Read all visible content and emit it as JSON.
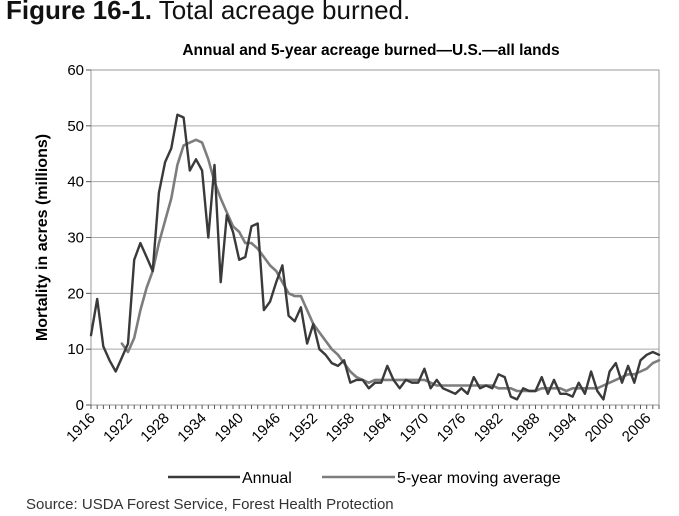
{
  "figure": {
    "number": "Figure 16-1.",
    "caption": "Total acreage burned."
  },
  "chart_data": {
    "type": "line",
    "title": "Annual and 5-year acreage burned—U.S.—all lands",
    "xlabel": "",
    "ylabel": "Mortality in acres (millions)",
    "ylim": [
      0,
      60
    ],
    "yticks": [
      "0",
      "10",
      "20",
      "30",
      "40",
      "50",
      "60"
    ],
    "xlim": [
      1916,
      2008
    ],
    "xticks": [
      "1916",
      "1922",
      "1928",
      "1934",
      "1940",
      "1946",
      "1952",
      "1958",
      "1964",
      "1970",
      "1976",
      "1982",
      "1988",
      "1994",
      "2000",
      "2006"
    ],
    "grid": "horizontal",
    "legend": "bottom",
    "series": [
      {
        "name": "Annual",
        "color": "#3a3a3a",
        "x": [
          1916,
          1917,
          1918,
          1919,
          1920,
          1921,
          1922,
          1923,
          1924,
          1925,
          1926,
          1927,
          1928,
          1929,
          1930,
          1931,
          1932,
          1933,
          1934,
          1935,
          1936,
          1937,
          1938,
          1939,
          1940,
          1941,
          1942,
          1943,
          1944,
          1945,
          1946,
          1947,
          1948,
          1949,
          1950,
          1951,
          1952,
          1953,
          1954,
          1955,
          1956,
          1957,
          1958,
          1959,
          1960,
          1961,
          1962,
          1963,
          1964,
          1965,
          1966,
          1967,
          1968,
          1969,
          1970,
          1971,
          1972,
          1973,
          1974,
          1975,
          1976,
          1977,
          1978,
          1979,
          1980,
          1981,
          1982,
          1983,
          1984,
          1985,
          1986,
          1987,
          1988,
          1989,
          1990,
          1991,
          1992,
          1993,
          1994,
          1995,
          1996,
          1997,
          1998,
          1999,
          2000,
          2001,
          2002,
          2003,
          2004,
          2005,
          2006,
          2007,
          2008
        ],
        "values": [
          12.5,
          19,
          10.5,
          8,
          6,
          8.5,
          11,
          26,
          29,
          26.5,
          24,
          38,
          43.5,
          46,
          52,
          51.5,
          42,
          44,
          42,
          30,
          43,
          22,
          34,
          31,
          26,
          26.5,
          32,
          32.5,
          17,
          18.5,
          22,
          25,
          16,
          15,
          17.5,
          11,
          14.5,
          10,
          9,
          7.5,
          7,
          8,
          4,
          4.5,
          4.5,
          3,
          4,
          4,
          7,
          4.5,
          3,
          4.5,
          4,
          4,
          6.5,
          3,
          4.5,
          3,
          2.5,
          2,
          3,
          2,
          5,
          3,
          3.5,
          3,
          5.5,
          5,
          1.5,
          1,
          3,
          2.5,
          2.5,
          5,
          2,
          4.5,
          2,
          2,
          1.5,
          4,
          2,
          6,
          2.5,
          1,
          6,
          7.5,
          4,
          7,
          4,
          8,
          9,
          9.5,
          9
        ]
      },
      {
        "name": "5-year moving average",
        "color": "#7d7d7d",
        "x": [
          1921,
          1922,
          1923,
          1924,
          1925,
          1926,
          1927,
          1928,
          1929,
          1930,
          1931,
          1932,
          1933,
          1934,
          1935,
          1936,
          1937,
          1938,
          1939,
          1940,
          1941,
          1942,
          1943,
          1944,
          1945,
          1946,
          1947,
          1948,
          1949,
          1950,
          1951,
          1952,
          1953,
          1954,
          1955,
          1956,
          1957,
          1958,
          1959,
          1960,
          1961,
          1962,
          1963,
          1964,
          1965,
          1966,
          1967,
          1968,
          1969,
          1970,
          1971,
          1972,
          1973,
          1974,
          1975,
          1976,
          1977,
          1978,
          1979,
          1980,
          1981,
          1982,
          1983,
          1984,
          1985,
          1986,
          1987,
          1988,
          1989,
          1990,
          1991,
          1992,
          1993,
          1994,
          1995,
          1996,
          1997,
          1998,
          1999,
          2000,
          2001,
          2002,
          2003,
          2004,
          2005,
          2006,
          2007,
          2008
        ],
        "values": [
          11,
          9.5,
          12,
          17,
          21,
          24,
          29,
          33,
          37,
          43,
          46.5,
          47,
          47.5,
          47,
          44,
          40,
          37,
          34.5,
          32,
          31,
          29,
          29,
          28,
          26.5,
          25,
          24,
          22,
          20,
          19.5,
          19.5,
          17,
          14.5,
          13,
          11.5,
          10,
          9,
          7.5,
          6,
          5,
          4.5,
          4,
          4.5,
          4.5,
          4.5,
          4.5,
          4.5,
          4.5,
          4.5,
          4.5,
          4.5,
          4,
          3.5,
          3.5,
          3.5,
          3.5,
          3.5,
          3.5,
          3.5,
          3.5,
          3.5,
          3.5,
          3,
          3,
          3,
          2.5,
          2.5,
          2.5,
          2.5,
          3,
          3,
          3,
          3,
          2.5,
          3,
          3,
          3,
          3,
          3,
          3.5,
          4,
          4.5,
          5,
          5.5,
          5.5,
          6,
          6.5,
          7.5,
          8
        ]
      }
    ]
  },
  "source_note": "Source: USDA Forest Service, Forest Health Protection"
}
